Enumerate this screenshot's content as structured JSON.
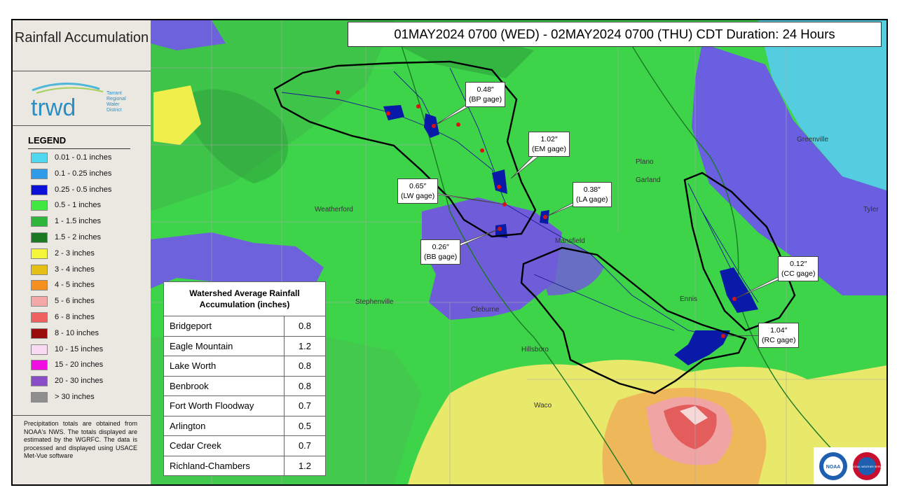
{
  "panel": {
    "title": "Rainfall Accumulation"
  },
  "logo": {
    "name": "trwd",
    "org": [
      "Tarrant",
      "Regional",
      "Water",
      "District"
    ]
  },
  "legend": {
    "title": "LEGEND",
    "items": [
      {
        "label": "0.01 - 0.1 inches",
        "color": "#4fd8f0"
      },
      {
        "label": "0.1 - 0.25 inches",
        "color": "#2f9be8"
      },
      {
        "label": "0.25 - 0.5 inches",
        "color": "#0b10d8"
      },
      {
        "label": "0.5 - 1 inches",
        "color": "#3fe93f"
      },
      {
        "label": "1 - 1.5 inches",
        "color": "#2fb63a"
      },
      {
        "label": "1.5 - 2 inches",
        "color": "#1a7a24"
      },
      {
        "label": "2 - 3 inches",
        "color": "#f5f53a"
      },
      {
        "label": "3 - 4 inches",
        "color": "#e5bf14"
      },
      {
        "label": "4 - 5 inches",
        "color": "#f5901e"
      },
      {
        "label": "5 - 6 inches",
        "color": "#f4a9a9"
      },
      {
        "label": "6 - 8 inches",
        "color": "#ef6060"
      },
      {
        "label": "8 - 10 inches",
        "color": "#9a0c0c"
      },
      {
        "label": "10 - 15 inches",
        "color": "#fad9f3"
      },
      {
        "label": "15 - 20 inches",
        "color": "#f00ee0"
      },
      {
        "label": "20 - 30 inches",
        "color": "#8a4dc8"
      },
      {
        "label": "> 30 inches",
        "color": "#8f8f8f"
      }
    ]
  },
  "footnote": "Precipitation totals are obtained from NOAA's NWS. The totals displayed are estimated by the WGRFC. The data is processed and displayed using USACE Met-Vue software",
  "header": {
    "title": "01MAY2024 0700 (WED) - 02MAY2024 0700 (THU) CDT Duration: 24 Hours"
  },
  "gages": [
    {
      "value": "0.48″",
      "name": "(BP gage)"
    },
    {
      "value": "1.02″",
      "name": "(EM gage)"
    },
    {
      "value": "0.65″",
      "name": "(LW gage)"
    },
    {
      "value": "0.38″",
      "name": "(LA gage)"
    },
    {
      "value": "0.26″",
      "name": "(BB gage)"
    },
    {
      "value": "0.12″",
      "name": "(CC gage)"
    },
    {
      "value": "1.04″",
      "name": "(RC gage)"
    }
  ],
  "cities": [
    "Plano",
    "Garland",
    "Greenville",
    "Weatherford",
    "Cleburne",
    "Stephenville",
    "Hillsboro",
    "Waco",
    "Mansfield",
    "Ennis",
    "Tyler"
  ],
  "table": {
    "title": "Watershed Average Rainfall Accumulation (inches)",
    "rows": [
      [
        "Bridgeport",
        0.8
      ],
      [
        "Eagle Mountain",
        1.2
      ],
      [
        "Lake Worth",
        0.8
      ],
      [
        "Benbrook",
        0.8
      ],
      [
        "Fort Worth Floodway",
        0.7
      ],
      [
        "Arlington",
        0.5
      ],
      [
        "Cedar Creek",
        0.7
      ],
      [
        "Richland-Chambers",
        1.2
      ]
    ]
  },
  "logos": [
    "NOAA",
    "NATIONAL WEATHER SERVICE"
  ]
}
